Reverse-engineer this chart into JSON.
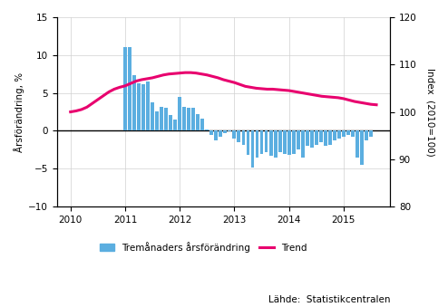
{
  "ylabel_left": "Årsförändring, %",
  "ylabel_right": "Index  (2010=100)",
  "ylim_left": [
    -10,
    15
  ],
  "ylim_right": [
    80,
    120
  ],
  "yticks_left": [
    -10,
    -5,
    0,
    5,
    10,
    15
  ],
  "yticks_right": [
    80,
    90,
    100,
    110,
    120
  ],
  "source_text": "Lähde:  Statistikcentralen",
  "legend_line": "Trend",
  "bar_color": "#5baee0",
  "trend_color": "#e8006e",
  "bar_data": [
    [
      2011.0,
      11.1
    ],
    [
      2011.083,
      11.0
    ],
    [
      2011.167,
      7.3
    ],
    [
      2011.25,
      6.3
    ],
    [
      2011.333,
      6.2
    ],
    [
      2011.417,
      6.5
    ],
    [
      2011.5,
      3.8
    ],
    [
      2011.583,
      2.6
    ],
    [
      2011.667,
      3.2
    ],
    [
      2011.75,
      3.1
    ],
    [
      2011.833,
      2.1
    ],
    [
      2011.917,
      1.5
    ],
    [
      2012.0,
      4.5
    ],
    [
      2012.083,
      3.2
    ],
    [
      2012.167,
      3.1
    ],
    [
      2012.25,
      3.0
    ],
    [
      2012.333,
      2.2
    ],
    [
      2012.417,
      1.6
    ],
    [
      2012.5,
      0.2
    ],
    [
      2012.583,
      -0.5
    ],
    [
      2012.667,
      -1.2
    ],
    [
      2012.75,
      -0.8
    ],
    [
      2012.833,
      -0.3
    ],
    [
      2012.917,
      -0.1
    ],
    [
      2013.0,
      -1.0
    ],
    [
      2013.083,
      -1.5
    ],
    [
      2013.167,
      -1.8
    ],
    [
      2013.25,
      -3.2
    ],
    [
      2013.333,
      -4.8
    ],
    [
      2013.417,
      -3.5
    ],
    [
      2013.5,
      -3.0
    ],
    [
      2013.583,
      -2.8
    ],
    [
      2013.667,
      -3.3
    ],
    [
      2013.75,
      -3.5
    ],
    [
      2013.833,
      -2.8
    ],
    [
      2013.917,
      -3.0
    ],
    [
      2014.0,
      -3.2
    ],
    [
      2014.083,
      -3.0
    ],
    [
      2014.167,
      -2.5
    ],
    [
      2014.25,
      -3.5
    ],
    [
      2014.333,
      -2.0
    ],
    [
      2014.417,
      -2.2
    ],
    [
      2014.5,
      -1.8
    ],
    [
      2014.583,
      -1.5
    ],
    [
      2014.667,
      -2.0
    ],
    [
      2014.75,
      -1.8
    ],
    [
      2014.833,
      -1.2
    ],
    [
      2014.917,
      -1.0
    ],
    [
      2015.0,
      -0.8
    ],
    [
      2015.083,
      -0.5
    ],
    [
      2015.167,
      -0.8
    ],
    [
      2015.25,
      -3.5
    ],
    [
      2015.333,
      -4.5
    ],
    [
      2015.417,
      -1.2
    ],
    [
      2015.5,
      -0.8
    ]
  ],
  "trend_x": [
    2010.0,
    2010.1,
    2010.2,
    2010.3,
    2010.4,
    2010.5,
    2010.6,
    2010.7,
    2010.8,
    2010.9,
    2011.0,
    2011.1,
    2011.2,
    2011.3,
    2011.4,
    2011.5,
    2011.6,
    2011.7,
    2011.8,
    2011.9,
    2012.0,
    2012.1,
    2012.2,
    2012.3,
    2012.4,
    2012.5,
    2012.6,
    2012.7,
    2012.8,
    2012.9,
    2013.0,
    2013.1,
    2013.2,
    2013.3,
    2013.4,
    2013.5,
    2013.6,
    2013.7,
    2013.8,
    2013.9,
    2014.0,
    2014.1,
    2014.2,
    2014.3,
    2014.4,
    2014.5,
    2014.6,
    2014.7,
    2014.8,
    2014.9,
    2015.0,
    2015.1,
    2015.2,
    2015.3,
    2015.4,
    2015.5,
    2015.6
  ],
  "trend_y": [
    100.0,
    100.2,
    100.5,
    101.0,
    101.8,
    102.6,
    103.4,
    104.2,
    104.8,
    105.2,
    105.5,
    106.0,
    106.5,
    106.8,
    107.0,
    107.2,
    107.5,
    107.8,
    108.0,
    108.1,
    108.2,
    108.3,
    108.3,
    108.2,
    108.0,
    107.8,
    107.5,
    107.2,
    106.8,
    106.5,
    106.2,
    105.8,
    105.4,
    105.2,
    105.0,
    104.9,
    104.8,
    104.8,
    104.7,
    104.6,
    104.5,
    104.3,
    104.1,
    103.9,
    103.7,
    103.5,
    103.3,
    103.2,
    103.1,
    103.0,
    102.8,
    102.5,
    102.2,
    102.0,
    101.8,
    101.6,
    101.5
  ]
}
